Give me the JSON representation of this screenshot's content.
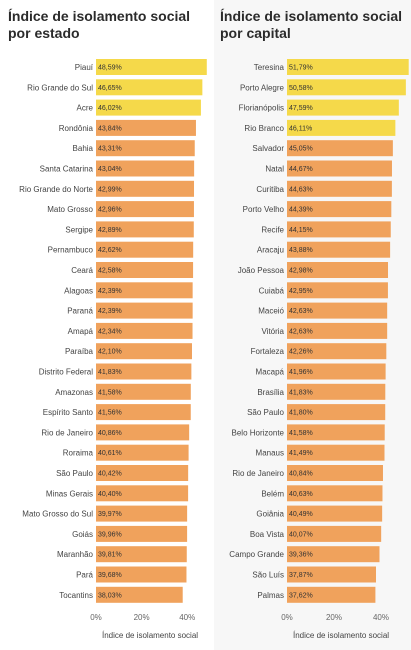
{
  "chart_data": [
    {
      "type": "bar",
      "orientation": "horizontal",
      "title": "Índice de isolamento social por estado",
      "xlabel": "Índice de isolamento social",
      "ylabel": "",
      "xlim": [
        0,
        50
      ],
      "x_ticks": [
        "0%",
        "20%",
        "40%"
      ],
      "x_tick_values": [
        0,
        20,
        40
      ],
      "grid": false,
      "colors": {
        "high": "#f5d94a",
        "normal": "#f0a25c"
      },
      "categories": [
        "Piauí",
        "Rio Grande do Sul",
        "Acre",
        "Rondônia",
        "Bahia",
        "Santa Catarina",
        "Rio Grande do Norte",
        "Mato Grosso",
        "Sergipe",
        "Pernambuco",
        "Ceará",
        "Alagoas",
        "Paraná",
        "Amapá",
        "Paraíba",
        "Distrito Federal",
        "Amazonas",
        "Espírito Santo",
        "Rio de Janeiro",
        "Roraima",
        "São Paulo",
        "Minas Gerais",
        "Mato Grosso do Sul",
        "Goiás",
        "Maranhão",
        "Pará",
        "Tocantins"
      ],
      "values": [
        48.59,
        46.65,
        46.02,
        43.84,
        43.31,
        43.04,
        42.99,
        42.96,
        42.89,
        42.62,
        42.58,
        42.39,
        42.39,
        42.34,
        42.1,
        41.83,
        41.58,
        41.56,
        40.86,
        40.61,
        40.42,
        40.4,
        39.97,
        39.96,
        39.81,
        39.68,
        38.03
      ],
      "value_labels": [
        "48,59%",
        "46,65%",
        "46,02%",
        "43,84%",
        "43,31%",
        "43,04%",
        "42,99%",
        "42,96%",
        "42,89%",
        "42,62%",
        "42,58%",
        "42,39%",
        "42,39%",
        "42,34%",
        "42,10%",
        "41,83%",
        "41,58%",
        "41,56%",
        "40,86%",
        "40,61%",
        "40,42%",
        "40,40%",
        "39,97%",
        "39,96%",
        "39,81%",
        "39,68%",
        "38,03%"
      ],
      "highlight_threshold": 46
    },
    {
      "type": "bar",
      "orientation": "horizontal",
      "title": "Índice de isolamento social por capital",
      "xlabel": "Índice de isolamento social",
      "ylabel": "",
      "xlim": [
        0,
        50
      ],
      "x_ticks": [
        "0%",
        "20%",
        "40%"
      ],
      "x_tick_values": [
        0,
        20,
        40
      ],
      "grid": false,
      "colors": {
        "high": "#f5d94a",
        "normal": "#f0a25c"
      },
      "categories": [
        "Teresina",
        "Porto Alegre",
        "Florianópolis",
        "Rio Branco",
        "Salvador",
        "Natal",
        "Curitiba",
        "Porto Velho",
        "Recife",
        "Aracaju",
        "João Pessoa",
        "Cuiabá",
        "Maceió",
        "Vitória",
        "Fortaleza",
        "Macapá",
        "Brasília",
        "São Paulo",
        "Belo Horizonte",
        "Manaus",
        "Rio de Janeiro",
        "Belém",
        "Goiânia",
        "Boa Vista",
        "Campo Grande",
        "São Luís",
        "Palmas"
      ],
      "values": [
        51.79,
        50.58,
        47.59,
        46.11,
        45.05,
        44.67,
        44.63,
        44.39,
        44.15,
        43.88,
        42.98,
        42.95,
        42.63,
        42.63,
        42.26,
        41.96,
        41.83,
        41.8,
        41.58,
        41.49,
        40.84,
        40.63,
        40.49,
        40.07,
        39.36,
        37.87,
        37.62
      ],
      "value_labels": [
        "51,79%",
        "50,58%",
        "47,59%",
        "46,11%",
        "45,05%",
        "44,67%",
        "44,63%",
        "44,39%",
        "44,15%",
        "43,88%",
        "42,98%",
        "42,95%",
        "42,63%",
        "42,63%",
        "42,26%",
        "41,96%",
        "41,83%",
        "41,80%",
        "41,58%",
        "41,49%",
        "40,84%",
        "40,63%",
        "40,49%",
        "40,07%",
        "39,36%",
        "37,87%",
        "37,62%"
      ],
      "highlight_threshold": 46
    }
  ]
}
